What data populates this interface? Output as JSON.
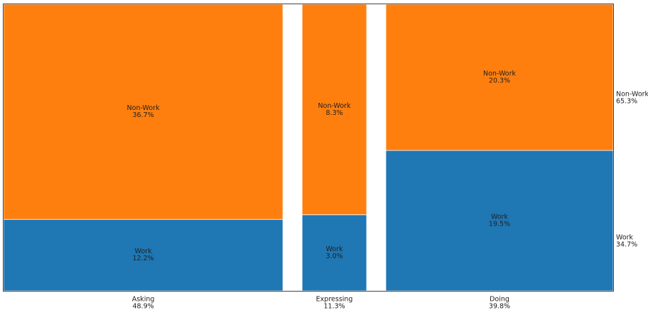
{
  "chart_data": {
    "type": "mosaic",
    "categories": [
      "Asking",
      "Expressing",
      "Doing"
    ],
    "category_totals": [
      48.9,
      11.3,
      39.8
    ],
    "category_total_labels": [
      "48.9%",
      "11.3%",
      "39.8%"
    ],
    "series": [
      {
        "name": "Work",
        "color": "#1f77b4",
        "values": [
          12.2,
          3.0,
          19.5
        ],
        "value_labels": [
          "12.2%",
          "3.0%",
          "19.5%"
        ]
      },
      {
        "name": "Non-Work",
        "color": "#ff7f0e",
        "values": [
          36.7,
          8.3,
          20.3
        ],
        "value_labels": [
          "36.7%",
          "8.3%",
          "20.3%"
        ]
      }
    ],
    "series_totals": [
      34.7,
      65.3
    ],
    "series_total_labels": [
      "34.7%",
      "65.3%"
    ]
  }
}
